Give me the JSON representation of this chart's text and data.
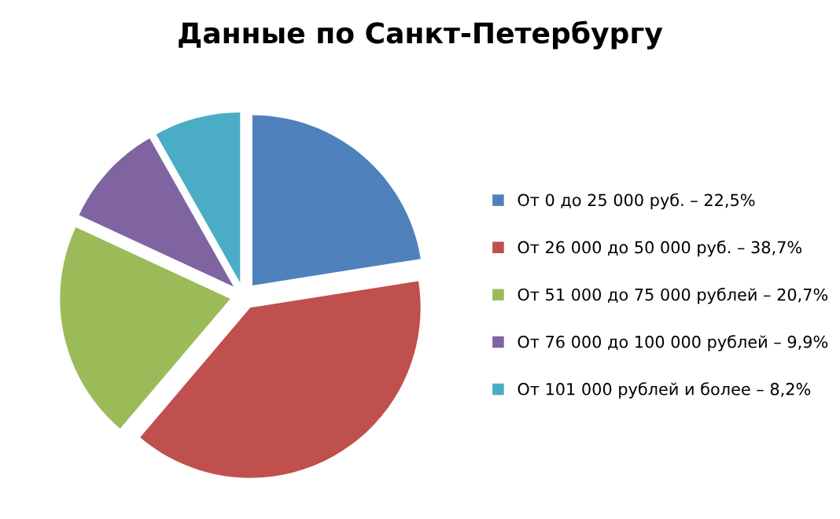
{
  "chart_data": {
    "type": "pie",
    "title": "Данные по Санкт-Петербургу",
    "categories": [
      "От 0 до 25 000 руб. – 22,5%",
      "От 26 000 до 50 000 руб. – 38,7%",
      "От 51 000 до 75 000 рублей – 20,7%",
      "От 76 000 до 100 000 рублей – 9,9%",
      "От 101 000 рублей и более – 8,2%"
    ],
    "values": [
      22.5,
      38.7,
      20.7,
      9.9,
      8.2
    ],
    "colors": [
      "#4f81bd",
      "#c0504d",
      "#9bbb59",
      "#8064a2",
      "#4bacc6"
    ],
    "legend": "right"
  }
}
